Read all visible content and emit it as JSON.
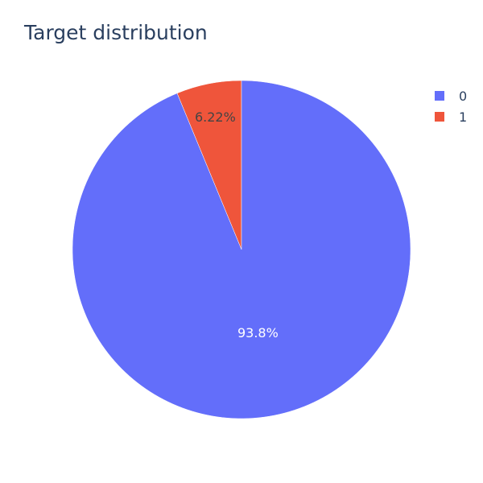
{
  "chart_data": {
    "type": "pie",
    "title": "Target distribution",
    "labels": [
      "0",
      "1"
    ],
    "values": [
      93.78,
      6.22
    ],
    "value_labels": [
      "93.8%",
      "6.22%"
    ],
    "colors": [
      "#636efa",
      "#ef553b"
    ],
    "label_colors": [
      "#ffffff",
      "#444444"
    ],
    "legend_placement": "top-right"
  }
}
